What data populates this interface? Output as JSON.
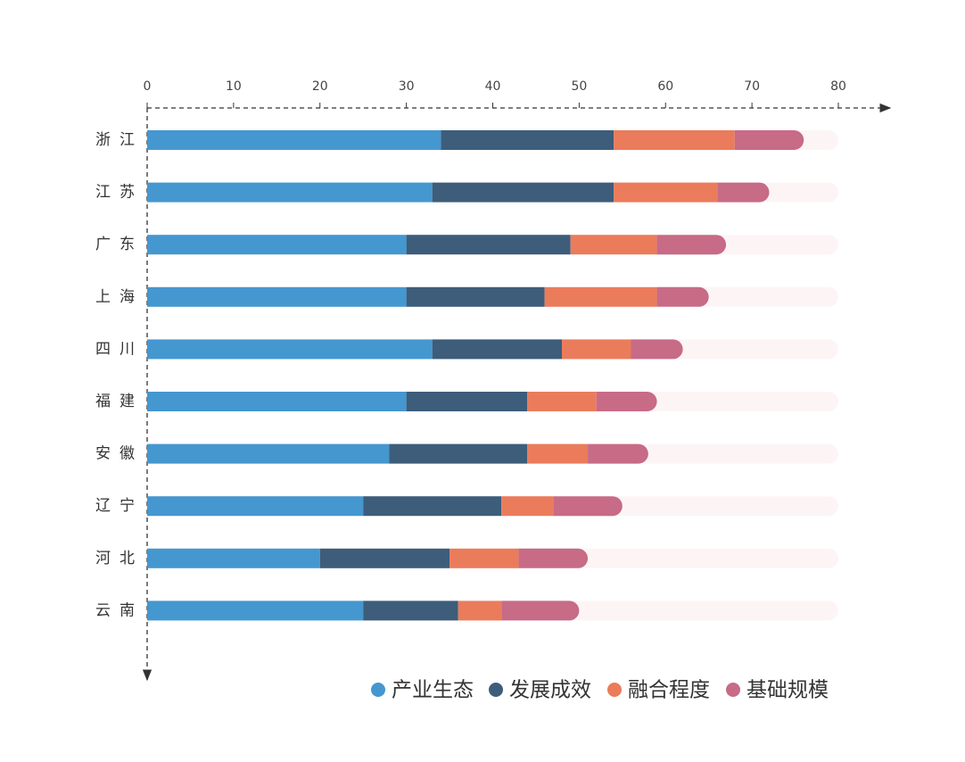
{
  "chart_data": {
    "type": "stacked-bar-horizontal",
    "categories": [
      "浙江",
      "江苏",
      "广东",
      "上海",
      "四川",
      "福建",
      "安徽",
      "辽宁",
      "河北",
      "云南"
    ],
    "series": [
      {
        "name": "产业生态",
        "color": "#4597d0",
        "values": [
          34,
          33,
          30,
          30,
          33,
          30,
          28,
          25,
          20,
          25
        ]
      },
      {
        "name": "发展成效",
        "color": "#3d5d7b",
        "values": [
          20,
          21,
          19,
          16,
          15,
          14,
          16,
          16,
          15,
          11
        ]
      },
      {
        "name": "融合程度",
        "color": "#ea7c5b",
        "values": [
          14,
          12,
          10,
          13,
          8,
          8,
          7,
          6,
          8,
          5
        ]
      },
      {
        "name": "基础规模",
        "color": "#c76b87",
        "values": [
          8,
          6,
          8,
          6,
          6,
          7,
          7,
          8,
          8,
          9
        ]
      }
    ],
    "xlim": [
      0,
      80
    ],
    "xticks": [
      0,
      10,
      20,
      30,
      40,
      50,
      60,
      70,
      80
    ],
    "track_color": "#fdf5f5",
    "legend": "bottom-right"
  }
}
